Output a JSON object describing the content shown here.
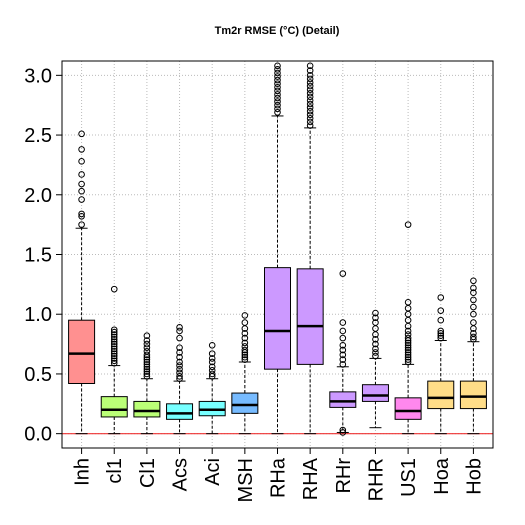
{
  "chart_data": {
    "type": "box",
    "title": "Tm2r RMSE (°C) (Detail)",
    "xlabel": "",
    "ylabel": "",
    "ylim": [
      -0.12,
      3.12
    ],
    "yticks": [
      "0.0",
      "0.5",
      "1.0",
      "1.5",
      "2.0",
      "2.5",
      "3.0"
    ],
    "ytick_values": [
      0.0,
      0.5,
      1.0,
      1.5,
      2.0,
      2.5,
      3.0
    ],
    "grid": true,
    "reference_line": 0.0,
    "reference_line_color": "#ee3333",
    "categories": [
      "Inh",
      "cl1",
      "Cl1",
      "Acs",
      "Aci",
      "MSH",
      "RHa",
      "RHA",
      "RHr",
      "RHR",
      "US1",
      "Hoa",
      "Hob"
    ],
    "boxes": [
      {
        "name": "Inh",
        "color": "#ff9090",
        "whislo": 0.0,
        "q1": 0.42,
        "median": 0.67,
        "q3": 0.95,
        "whishi": 1.72,
        "fliers": [
          1.75,
          1.82,
          1.84,
          1.96,
          2.03,
          2.09,
          2.17,
          2.28,
          2.38,
          2.51
        ]
      },
      {
        "name": "cl1",
        "color": "#bbff77",
        "whislo": 0.0,
        "q1": 0.14,
        "median": 0.2,
        "q3": 0.31,
        "whishi": 0.57,
        "fliers": [
          0.59,
          0.61,
          0.63,
          0.65,
          0.67,
          0.69,
          0.71,
          0.73,
          0.75,
          0.77,
          0.79,
          0.81,
          0.83,
          0.85,
          0.87,
          1.21
        ]
      },
      {
        "name": "Cl1",
        "color": "#bbff77",
        "whislo": 0.0,
        "q1": 0.14,
        "median": 0.19,
        "q3": 0.27,
        "whishi": 0.46,
        "fliers": [
          0.48,
          0.5,
          0.52,
          0.54,
          0.56,
          0.58,
          0.6,
          0.62,
          0.64,
          0.66,
          0.69,
          0.72,
          0.75,
          0.78,
          0.82
        ]
      },
      {
        "name": "Acs",
        "color": "#77ffff",
        "whislo": 0.0,
        "q1": 0.12,
        "median": 0.17,
        "q3": 0.25,
        "whishi": 0.44,
        "fliers": [
          0.46,
          0.48,
          0.51,
          0.54,
          0.57,
          0.6,
          0.64,
          0.68,
          0.72,
          0.8,
          0.86,
          0.89
        ]
      },
      {
        "name": "Aci",
        "color": "#77ffff",
        "whislo": 0.0,
        "q1": 0.15,
        "median": 0.2,
        "q3": 0.27,
        "whishi": 0.46,
        "fliers": [
          0.48,
          0.5,
          0.53,
          0.56,
          0.6,
          0.63,
          0.67,
          0.74
        ]
      },
      {
        "name": "MSH",
        "color": "#77bbff",
        "whislo": 0.0,
        "q1": 0.17,
        "median": 0.24,
        "q3": 0.34,
        "whishi": 0.6,
        "fliers": [
          0.62,
          0.64,
          0.66,
          0.68,
          0.7,
          0.73,
          0.76,
          0.8,
          0.84,
          0.88,
          0.93,
          0.99
        ]
      },
      {
        "name": "RHa",
        "color": "#cc99ff",
        "whislo": 0.0,
        "q1": 0.54,
        "median": 0.86,
        "q3": 1.39,
        "whishi": 2.66,
        "fliers": [
          2.69,
          2.72,
          2.75,
          2.78,
          2.81,
          2.84,
          2.87,
          2.9,
          2.93,
          2.96,
          2.99,
          3.02,
          3.05,
          3.08
        ]
      },
      {
        "name": "RHA",
        "color": "#cc99ff",
        "whislo": 0.0,
        "q1": 0.58,
        "median": 0.9,
        "q3": 1.38,
        "whishi": 2.56,
        "fliers": [
          2.58,
          2.61,
          2.64,
          2.67,
          2.7,
          2.73,
          2.76,
          2.79,
          2.82,
          2.85,
          2.88,
          2.91,
          2.94,
          2.97,
          3.0,
          3.04,
          3.08
        ]
      },
      {
        "name": "RHr",
        "color": "#cc99ff",
        "whislo": 0.01,
        "q1": 0.22,
        "median": 0.27,
        "q3": 0.35,
        "whishi": 0.56,
        "fliers": [
          0.01,
          0.03,
          0.58,
          0.62,
          0.66,
          0.7,
          0.74,
          0.8,
          0.86,
          0.93,
          1.34
        ]
      },
      {
        "name": "RHR",
        "color": "#cc99ff",
        "whislo": 0.05,
        "q1": 0.27,
        "median": 0.32,
        "q3": 0.41,
        "whishi": 0.63,
        "fliers": [
          0.65,
          0.68,
          0.71,
          0.75,
          0.79,
          0.83,
          0.88,
          0.93,
          0.97,
          1.01
        ]
      },
      {
        "name": "US1",
        "color": "#ff88ee",
        "whislo": 0.0,
        "q1": 0.12,
        "median": 0.19,
        "q3": 0.3,
        "whishi": 0.58,
        "fliers": [
          0.6,
          0.62,
          0.64,
          0.66,
          0.68,
          0.7,
          0.72,
          0.74,
          0.76,
          0.78,
          0.8,
          0.83,
          0.86,
          0.9,
          0.95,
          1.0,
          1.05,
          1.1,
          1.75
        ]
      },
      {
        "name": "Hoa",
        "color": "#ffdd88",
        "whislo": 0.0,
        "q1": 0.21,
        "median": 0.3,
        "q3": 0.44,
        "whishi": 0.78,
        "fliers": [
          0.8,
          0.82,
          0.84,
          0.86,
          0.95,
          1.03,
          1.14
        ]
      },
      {
        "name": "Hob",
        "color": "#ffdd88",
        "whislo": 0.0,
        "q1": 0.21,
        "median": 0.31,
        "q3": 0.44,
        "whishi": 0.77,
        "fliers": [
          0.79,
          0.81,
          0.84,
          0.88,
          0.93,
          1.0,
          1.06,
          1.12,
          1.18,
          1.22,
          1.28
        ]
      }
    ]
  }
}
